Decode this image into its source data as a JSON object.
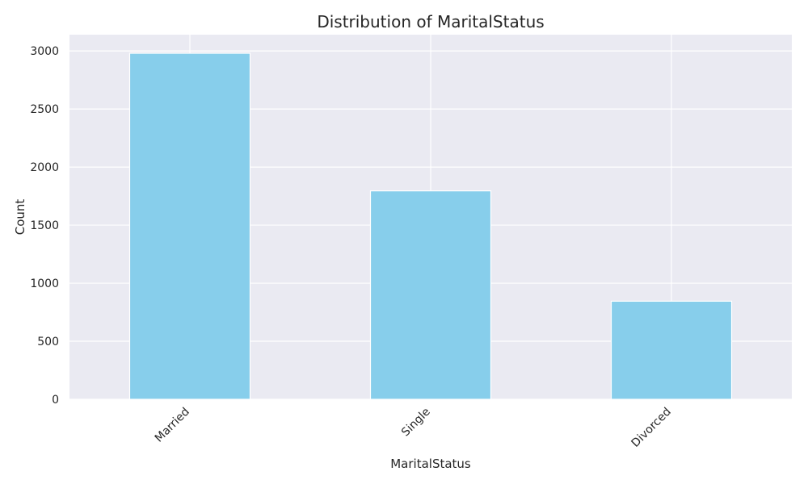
{
  "chart_data": {
    "type": "bar",
    "title": "Distribution of MaritalStatus",
    "xlabel": "MaritalStatus",
    "ylabel": "Count",
    "categories": [
      "Married",
      "Single",
      "Divorced"
    ],
    "values": [
      2980,
      1795,
      845
    ],
    "ylim": [
      0,
      3140
    ],
    "yticks": [
      0,
      500,
      1000,
      1500,
      2000,
      2500,
      3000
    ],
    "grid": true,
    "style": {
      "bar_color": "#87ceeb",
      "bar_edge_color": "#ffffff",
      "plot_background": "#eaeaf2",
      "grid_color": "#ffffff"
    }
  }
}
